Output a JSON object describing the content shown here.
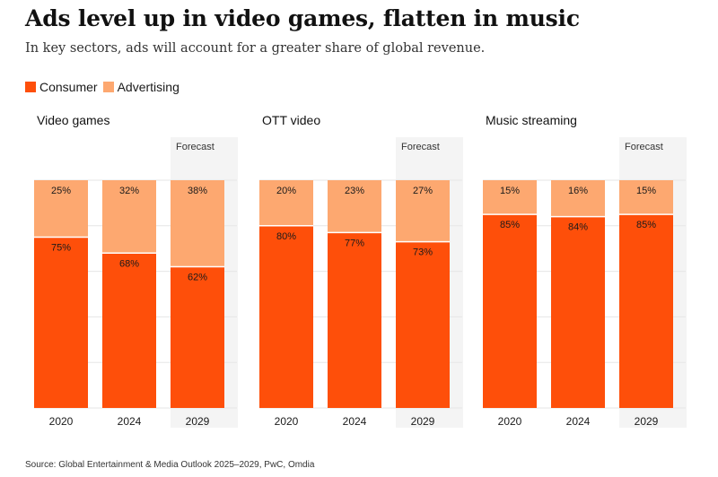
{
  "header": {
    "title": "Ads level up in video games, flatten in music",
    "subtitle": "In key sectors, ads will account for a greater share of global revenue."
  },
  "legend": {
    "consumer_label": "Consumer",
    "advertising_label": "Advertising"
  },
  "colors": {
    "consumer": "#fe4f0a",
    "advertising": "#fda870",
    "forecast_band": "#f4f4f4",
    "grid": "#e6e6e6"
  },
  "source": "Source: Global Entertainment & Media Outlook 2025–2029, PwC, Omdia",
  "chart_data": [
    {
      "type": "bar",
      "stacked": true,
      "title": "Video games",
      "categories": [
        "2020",
        "2024",
        "2029"
      ],
      "forecast_label": "Forecast",
      "forecast_categories": [
        "2029"
      ],
      "ylim": [
        0,
        100
      ],
      "series": [
        {
          "name": "Consumer",
          "values": [
            75,
            68,
            62
          ]
        },
        {
          "name": "Advertising",
          "values": [
            25,
            32,
            38
          ]
        }
      ]
    },
    {
      "type": "bar",
      "stacked": true,
      "title": "OTT video",
      "categories": [
        "2020",
        "2024",
        "2029"
      ],
      "forecast_label": "Forecast",
      "forecast_categories": [
        "2029"
      ],
      "ylim": [
        0,
        100
      ],
      "series": [
        {
          "name": "Consumer",
          "values": [
            80,
            77,
            73
          ]
        },
        {
          "name": "Advertising",
          "values": [
            20,
            23,
            27
          ]
        }
      ]
    },
    {
      "type": "bar",
      "stacked": true,
      "title": "Music streaming",
      "categories": [
        "2020",
        "2024",
        "2029"
      ],
      "forecast_label": "Forecast",
      "forecast_categories": [
        "2029"
      ],
      "ylim": [
        0,
        100
      ],
      "series": [
        {
          "name": "Consumer",
          "values": [
            85,
            84,
            85
          ]
        },
        {
          "name": "Advertising",
          "values": [
            15,
            16,
            15
          ]
        }
      ]
    }
  ]
}
